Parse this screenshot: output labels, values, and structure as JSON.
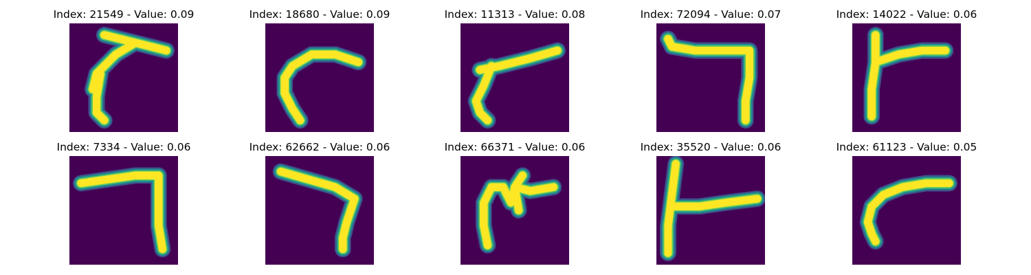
{
  "colors": {
    "background": "#440154",
    "stroke_core": "#fde725",
    "stroke_mid": "#5ec962",
    "stroke_edge": "#21918c",
    "stroke_fringe": "#3b528b"
  },
  "panels": [
    {
      "title": "Index: 21549 - Value: 0.09"
    },
    {
      "title": "Index: 18680 - Value: 0.09"
    },
    {
      "title": "Index: 11313 - Value: 0.08"
    },
    {
      "title": "Index: 72094 - Value: 0.07"
    },
    {
      "title": "Index: 14022 - Value: 0.06"
    },
    {
      "title": "Index: 7334 - Value: 0.06"
    },
    {
      "title": "Index: 62662 - Value: 0.06"
    },
    {
      "title": "Index: 66371 - Value: 0.06"
    },
    {
      "title": "Index: 35520 - Value: 0.06"
    },
    {
      "title": "Index: 61123 - Value: 0.05"
    }
  ]
}
